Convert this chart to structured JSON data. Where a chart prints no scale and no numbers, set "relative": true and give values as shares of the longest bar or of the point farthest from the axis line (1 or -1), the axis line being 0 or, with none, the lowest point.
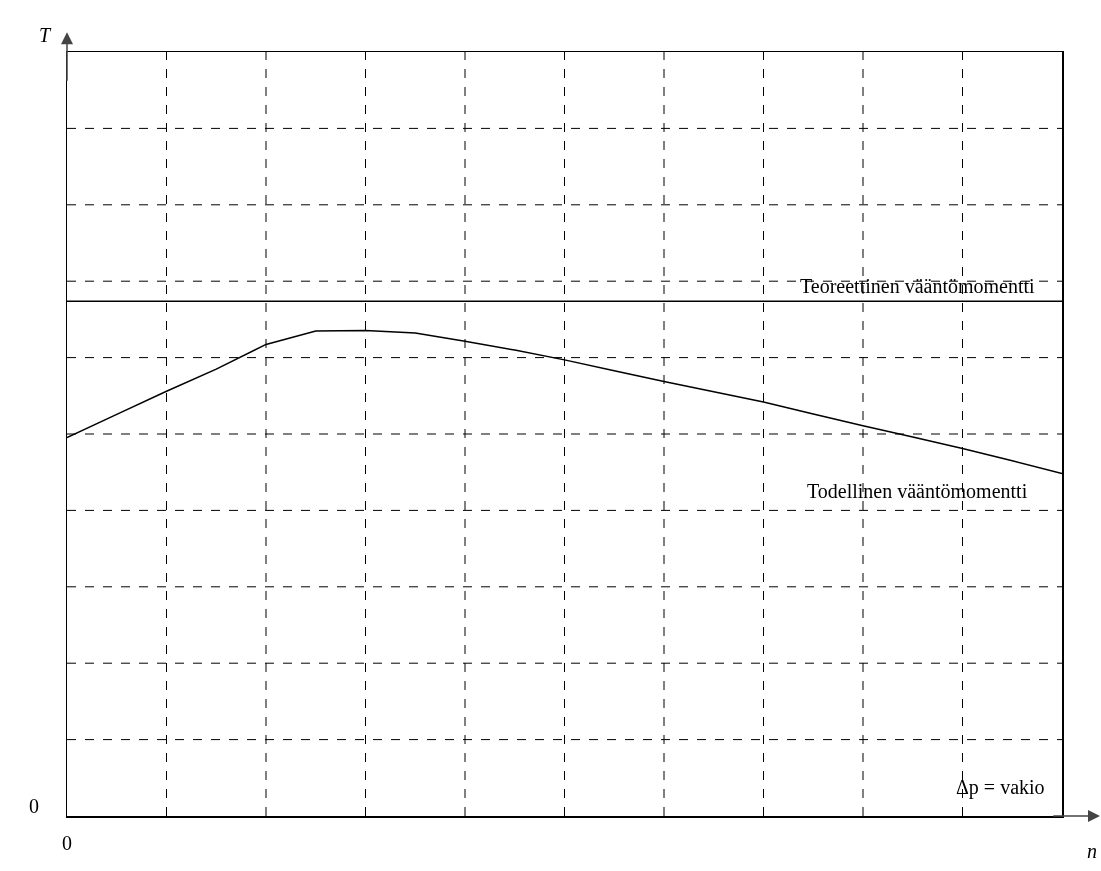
{
  "chart_data": {
    "type": "line",
    "relative": true,
    "xlabel": "n",
    "categories": [
      null,
      null,
      null,
      null,
      null,
      null,
      null,
      null,
      null,
      null,
      null,
      null,
      null,
      null,
      null,
      null,
      null,
      null,
      null,
      null,
      null
    ],
    "series": [
      {
        "name": "Teoreettinen vääntömomentti",
        "color": "#000000",
        "values": [
          1,
          1,
          1,
          1,
          1,
          1,
          1,
          1,
          1,
          1,
          1,
          1,
          1,
          1,
          1,
          1,
          1,
          1,
          1,
          1,
          1
        ]
      },
      {
        "name": "Todellinen vääntömomentti",
        "color": "#000000",
        "values": [
          0.735,
          0.78,
          0.825,
          0.868,
          0.916,
          0.942,
          0.943,
          0.938,
          0.922,
          0.905,
          0.886,
          0.865,
          0.844,
          0.824,
          0.804,
          0.781,
          0.758,
          0.736,
          0.714,
          0.69,
          0.665
        ]
      }
    ],
    "annotations": [
      "0",
      "0",
      "Δp = vakio",
      "T"
    ],
    "grid": true,
    "marker": "none",
    "line_style": "solid",
    "legend": false
  }
}
